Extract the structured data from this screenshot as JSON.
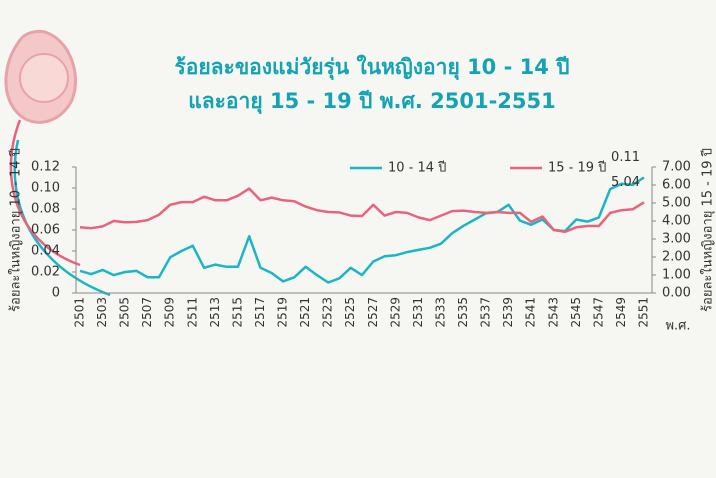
{
  "chart_data": {
    "type": "line",
    "title": [
      "ร้อยละของแม่วัยรุ่น ในหญิงอายุ 10 - 14 ปี",
      "และอายุ 15 - 19 ปี พ.ศ. 2501-2551"
    ],
    "xlabel": "พ.ศ.",
    "ylabel": "ร้อยละในหญิงอายุ 10 - 14 ปี",
    "y2label": "ร้อยละในหญิงอายุ 15 - 19 ปี",
    "categories": [
      "2501",
      null,
      "2503",
      null,
      "2505",
      null,
      "2507",
      null,
      "2509",
      null,
      "2511",
      null,
      "2513",
      null,
      "2515",
      null,
      "2517",
      null,
      "2519",
      null,
      "2521",
      null,
      "2523",
      null,
      "2525",
      null,
      "2527",
      null,
      "2529",
      null,
      "2531",
      null,
      "2533",
      null,
      "2535",
      null,
      "2537",
      null,
      "2539",
      null,
      "2541",
      null,
      "2543",
      null,
      "2545",
      null,
      "2547",
      null,
      "2549",
      null,
      "2551"
    ],
    "ylim": [
      0,
      0.12
    ],
    "yticks": [
      0,
      0.02,
      0.04,
      0.06,
      0.08,
      {
        "value": 0.1,
        "label": "0.10"
      },
      0.12
    ],
    "y2lim": [
      0,
      7
    ],
    "y2ticks": [
      {
        "value": 0,
        "label": "0.00"
      },
      {
        "value": 1,
        "label": "1.00"
      },
      {
        "value": 2,
        "label": "2.00"
      },
      {
        "value": 3,
        "label": "3.00"
      },
      {
        "value": 4,
        "label": "4.00"
      },
      {
        "value": 5,
        "label": "5.00"
      },
      {
        "value": 6,
        "label": "6.00"
      },
      {
        "value": 7,
        "label": "7.00"
      }
    ],
    "series": [
      {
        "name": "10 - 14 ปี",
        "color": "#1bb5c6",
        "values": [
          0.021,
          0.018,
          0.022,
          0.017,
          0.02,
          0.021,
          0.015,
          0.015,
          0.034,
          0.04,
          0.045,
          0.024,
          0.027,
          0.025,
          0.025,
          0.054,
          0.024,
          0.019,
          0.011,
          0.015,
          0.025,
          0.017,
          0.01,
          0.014,
          0.024,
          0.017,
          0.03,
          0.035,
          0.036,
          0.039,
          0.041,
          0.043,
          0.047,
          0.057,
          0.064,
          0.07,
          0.076,
          0.077,
          0.084,
          0.069,
          0.065,
          0.07,
          0.06,
          0.059,
          0.07,
          0.068,
          0.072,
          0.099,
          0.104,
          0.103,
          0.11
        ],
        "value_labels": [
          null,
          null,
          null,
          null,
          null,
          null,
          null,
          null,
          null,
          null,
          null,
          null,
          null,
          null,
          null,
          null,
          null,
          null,
          null,
          null,
          null,
          null,
          null,
          null,
          null,
          null,
          null,
          null,
          null,
          null,
          null,
          null,
          null,
          null,
          null,
          null,
          null,
          null,
          null,
          null,
          null,
          null,
          null,
          null,
          null,
          null,
          null,
          null,
          null,
          null,
          "0.11"
        ]
      },
      {
        "name": "15 - 19 ปี",
        "color": "#e8637c",
        "axis": "y2",
        "values": [
          3.65,
          3.6,
          3.7,
          4.0,
          3.93,
          3.95,
          4.05,
          4.35,
          4.9,
          5.05,
          5.05,
          5.35,
          5.15,
          5.15,
          5.4,
          5.8,
          5.15,
          5.3,
          5.15,
          5.1,
          4.8,
          4.6,
          4.5,
          4.48,
          4.3,
          4.28,
          4.9,
          4.3,
          4.5,
          4.45,
          4.2,
          4.05,
          4.3,
          4.55,
          4.58,
          4.5,
          4.45,
          4.5,
          4.45,
          4.45,
          3.95,
          4.25,
          3.5,
          3.4,
          3.65,
          3.72,
          3.72,
          4.45,
          4.6,
          4.65,
          5.04
        ],
        "value_labels": [
          null,
          null,
          null,
          null,
          null,
          null,
          null,
          null,
          null,
          null,
          null,
          null,
          null,
          null,
          null,
          null,
          null,
          null,
          null,
          null,
          null,
          null,
          null,
          null,
          null,
          null,
          null,
          null,
          null,
          null,
          null,
          null,
          null,
          null,
          null,
          null,
          null,
          null,
          null,
          null,
          null,
          null,
          null,
          null,
          null,
          null,
          null,
          null,
          null,
          null,
          "5.04"
        ]
      }
    ]
  }
}
